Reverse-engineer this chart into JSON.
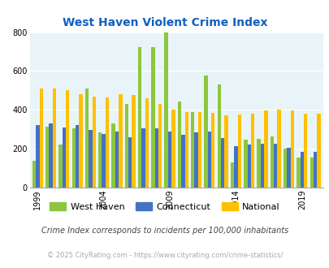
{
  "title": "West Haven Violent Crime Index",
  "title_color": "#1060c0",
  "years": [
    1999,
    2000,
    2001,
    2002,
    2003,
    2004,
    2005,
    2006,
    2007,
    2008,
    2009,
    2010,
    2011,
    2012,
    2013,
    2014,
    2015,
    2016,
    2017,
    2018,
    2019,
    2020
  ],
  "west_haven": [
    140,
    315,
    220,
    305,
    510,
    285,
    330,
    430,
    725,
    725,
    800,
    445,
    390,
    575,
    530,
    130,
    245,
    250,
    265,
    200,
    155,
    155
  ],
  "connecticut": [
    320,
    330,
    310,
    320,
    295,
    275,
    290,
    260,
    305,
    305,
    290,
    270,
    285,
    290,
    255,
    215,
    220,
    225,
    225,
    205,
    185,
    185
  ],
  "national": [
    510,
    510,
    500,
    480,
    470,
    465,
    480,
    475,
    460,
    430,
    400,
    390,
    390,
    385,
    370,
    375,
    380,
    395,
    400,
    395,
    380,
    380
  ],
  "west_haven_color": "#8dc63f",
  "connecticut_color": "#4472c4",
  "national_color": "#ffc000",
  "bg_color": "#e8f4f8",
  "ylim": [
    0,
    800
  ],
  "yticks": [
    0,
    200,
    400,
    600,
    800
  ],
  "xlabel_ticks": [
    1999,
    2004,
    2009,
    2014,
    2019
  ],
  "legend_labels": [
    "West Haven",
    "Connecticut",
    "National"
  ],
  "footnote1": "Crime Index corresponds to incidents per 100,000 inhabitants",
  "footnote2": "© 2025 CityRating.com - https://www.cityrating.com/crime-statistics/",
  "footnote1_color": "#444444",
  "footnote2_color": "#aaaaaa"
}
